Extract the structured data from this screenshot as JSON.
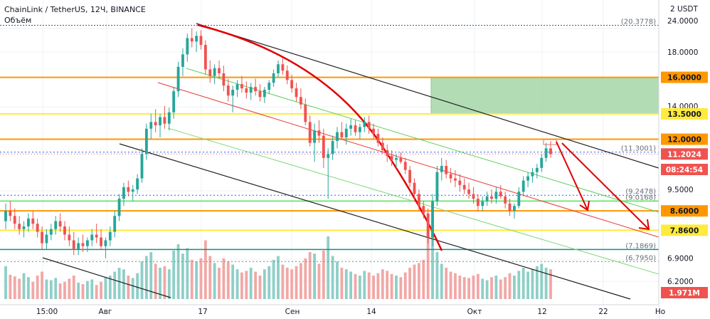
{
  "header": {
    "symbol": "ChainLink / TetherUS, 12Ч, BINANCE",
    "indicator": "Объём"
  },
  "colors": {
    "up": "#26a69a",
    "down": "#ef5350",
    "vol_up": "#8fcfc8",
    "vol_down": "#f1a8a6",
    "orange": "#ff9800",
    "yellow": "#ffeb3b",
    "green_line": "#4caf50",
    "teal_line": "#138f88",
    "red_arc": "#e00000",
    "zone": "#a5d6a7",
    "blue_dotted": "#2962ff",
    "grid": "#eef1f5"
  },
  "chart_data": {
    "type": "candlestick",
    "y_axis_currency": "USDT",
    "y_axis_scale": "log",
    "y_axis_range": [
      5.6,
      24.0
    ],
    "y_ticks": [
      "24.0000",
      "18.0000",
      "14.0000",
      "9.5000",
      "6.9000",
      "6.2000"
    ],
    "x_ticks": [
      "15:00",
      "Авг",
      "17",
      "Сен",
      "14",
      "Окт",
      "12",
      "22",
      "Но"
    ],
    "ohlc": [
      [
        8.2,
        8.9,
        7.9,
        8.6
      ],
      [
        8.6,
        9.0,
        8.2,
        8.4
      ],
      [
        8.4,
        8.7,
        7.9,
        8.1
      ],
      [
        8.1,
        8.4,
        7.7,
        7.9
      ],
      [
        7.9,
        8.2,
        7.6,
        8.0
      ],
      [
        8.0,
        8.5,
        7.8,
        8.3
      ],
      [
        8.3,
        8.6,
        7.9,
        8.1
      ],
      [
        8.1,
        8.3,
        7.6,
        7.8
      ],
      [
        7.8,
        8.0,
        7.2,
        7.4
      ],
      [
        7.4,
        7.9,
        7.2,
        7.7
      ],
      [
        7.7,
        8.1,
        7.5,
        7.9
      ],
      [
        7.9,
        8.4,
        7.7,
        8.2
      ],
      [
        8.2,
        8.5,
        7.8,
        8.0
      ],
      [
        8.0,
        8.2,
        7.5,
        7.7
      ],
      [
        7.7,
        8.0,
        7.3,
        7.5
      ],
      [
        7.5,
        7.8,
        7.0,
        7.2
      ],
      [
        7.2,
        7.6,
        7.0,
        7.4
      ],
      [
        7.4,
        7.7,
        7.1,
        7.3
      ],
      [
        7.3,
        7.6,
        7.1,
        7.5
      ],
      [
        7.5,
        7.9,
        7.3,
        7.7
      ],
      [
        7.7,
        8.1,
        7.4,
        7.6
      ],
      [
        7.6,
        7.9,
        7.2,
        7.3
      ],
      [
        7.3,
        7.6,
        6.9,
        7.5
      ],
      [
        7.5,
        8.0,
        7.3,
        7.8
      ],
      [
        7.8,
        8.6,
        7.6,
        8.4
      ],
      [
        8.4,
        9.3,
        8.2,
        9.1
      ],
      [
        9.1,
        9.8,
        8.8,
        9.6
      ],
      [
        9.6,
        9.9,
        9.2,
        9.4
      ],
      [
        9.4,
        9.7,
        9.0,
        9.5
      ],
      [
        9.5,
        10.2,
        9.3,
        10.0
      ],
      [
        10.0,
        11.5,
        9.8,
        11.2
      ],
      [
        11.2,
        12.9,
        10.9,
        12.6
      ],
      [
        12.6,
        13.5,
        12.0,
        13.0
      ],
      [
        13.0,
        13.8,
        12.4,
        12.8
      ],
      [
        12.8,
        13.5,
        12.1,
        13.3
      ],
      [
        13.3,
        14.0,
        12.6,
        12.9
      ],
      [
        12.9,
        13.9,
        12.5,
        13.6
      ],
      [
        13.6,
        15.3,
        13.2,
        15.0
      ],
      [
        15.0,
        17.2,
        14.6,
        16.8
      ],
      [
        16.8,
        18.3,
        16.1,
        17.8
      ],
      [
        17.8,
        19.6,
        17.2,
        19.2
      ],
      [
        19.2,
        20.1,
        18.4,
        18.9
      ],
      [
        18.9,
        19.8,
        18.0,
        19.4
      ],
      [
        19.4,
        19.9,
        18.2,
        18.6
      ],
      [
        18.6,
        19.0,
        16.2,
        16.6
      ],
      [
        16.6,
        17.3,
        15.6,
        16.1
      ],
      [
        16.1,
        17.0,
        15.5,
        16.7
      ],
      [
        16.7,
        17.3,
        15.9,
        16.3
      ],
      [
        16.3,
        16.9,
        15.0,
        15.4
      ],
      [
        15.4,
        15.9,
        14.3,
        14.7
      ],
      [
        14.7,
        15.4,
        13.6,
        15.1
      ],
      [
        15.1,
        15.8,
        14.6,
        15.5
      ],
      [
        15.5,
        16.1,
        14.9,
        15.2
      ],
      [
        15.2,
        15.7,
        14.5,
        14.9
      ],
      [
        14.9,
        15.6,
        14.4,
        15.3
      ],
      [
        15.3,
        15.9,
        14.7,
        15.0
      ],
      [
        15.0,
        15.5,
        14.3,
        14.6
      ],
      [
        14.6,
        15.3,
        14.2,
        15.1
      ],
      [
        15.1,
        15.8,
        14.8,
        15.6
      ],
      [
        15.6,
        16.6,
        15.3,
        16.3
      ],
      [
        16.3,
        17.3,
        16.0,
        17.0
      ],
      [
        17.0,
        17.5,
        16.2,
        16.5
      ],
      [
        16.5,
        16.9,
        15.5,
        15.8
      ],
      [
        15.8,
        16.2,
        14.9,
        15.2
      ],
      [
        15.2,
        15.6,
        14.3,
        14.6
      ],
      [
        14.6,
        15.2,
        13.8,
        14.1
      ],
      [
        14.1,
        14.5,
        12.8,
        13.0
      ],
      [
        13.0,
        13.4,
        11.6,
        11.8
      ],
      [
        11.8,
        12.9,
        10.8,
        12.5
      ],
      [
        12.5,
        13.1,
        11.8,
        12.2
      ],
      [
        12.2,
        12.6,
        10.5,
        11.0
      ],
      [
        11.0,
        11.5,
        9.1,
        11.2
      ],
      [
        11.2,
        12.2,
        10.9,
        11.9
      ],
      [
        11.9,
        12.7,
        11.5,
        12.4
      ],
      [
        12.4,
        13.0,
        12.0,
        12.1
      ],
      [
        12.1,
        12.9,
        11.7,
        12.6
      ],
      [
        12.6,
        13.2,
        12.2,
        12.8
      ],
      [
        12.8,
        13.1,
        12.2,
        12.4
      ],
      [
        12.4,
        12.9,
        12.0,
        12.7
      ],
      [
        12.7,
        13.3,
        12.4,
        13.0
      ],
      [
        13.0,
        13.4,
        12.3,
        12.6
      ],
      [
        12.6,
        12.9,
        12.0,
        12.3
      ],
      [
        12.3,
        12.6,
        11.6,
        11.8
      ],
      [
        11.8,
        12.1,
        11.2,
        11.4
      ],
      [
        11.4,
        11.7,
        10.8,
        11.1
      ],
      [
        11.1,
        11.4,
        10.6,
        10.9
      ],
      [
        10.9,
        11.2,
        10.5,
        11.0
      ],
      [
        11.0,
        11.3,
        10.7,
        10.8
      ],
      [
        10.8,
        11.0,
        10.2,
        10.4
      ],
      [
        10.4,
        10.6,
        9.6,
        9.8
      ],
      [
        9.8,
        10.0,
        9.0,
        9.3
      ],
      [
        9.3,
        9.5,
        8.6,
        8.8
      ],
      [
        8.8,
        9.0,
        8.3,
        8.5
      ],
      [
        8.5,
        8.7,
        7.4,
        7.6
      ],
      [
        7.6,
        9.3,
        7.3,
        9.0
      ],
      [
        9.0,
        10.6,
        8.8,
        10.3
      ],
      [
        10.3,
        11.0,
        9.9,
        10.6
      ],
      [
        10.6,
        10.9,
        10.0,
        10.2
      ],
      [
        10.2,
        10.5,
        9.8,
        10.0
      ],
      [
        10.0,
        10.4,
        9.6,
        9.9
      ],
      [
        9.9,
        10.2,
        9.4,
        9.7
      ],
      [
        9.7,
        10.0,
        9.3,
        9.5
      ],
      [
        9.5,
        9.8,
        9.1,
        9.3
      ],
      [
        9.3,
        9.6,
        8.9,
        9.1
      ],
      [
        9.1,
        9.3,
        8.6,
        8.8
      ],
      [
        8.8,
        9.2,
        8.6,
        9.0
      ],
      [
        9.0,
        9.4,
        8.8,
        9.2
      ],
      [
        9.2,
        9.5,
        8.9,
        9.1
      ],
      [
        9.1,
        9.6,
        8.9,
        9.4
      ],
      [
        9.4,
        9.7,
        9.1,
        9.2
      ],
      [
        9.2,
        9.4,
        8.7,
        8.9
      ],
      [
        8.9,
        9.1,
        8.4,
        8.6
      ],
      [
        8.6,
        8.9,
        8.3,
        8.8
      ],
      [
        8.8,
        9.6,
        8.7,
        9.4
      ],
      [
        9.4,
        10.1,
        9.2,
        9.9
      ],
      [
        9.9,
        10.3,
        9.6,
        10.1
      ],
      [
        10.1,
        10.5,
        9.8,
        10.3
      ],
      [
        10.3,
        10.7,
        10.0,
        10.5
      ],
      [
        10.5,
        11.2,
        10.3,
        11.0
      ],
      [
        11.0,
        11.8,
        10.8,
        11.5
      ],
      [
        11.5,
        11.9,
        11.0,
        11.2
      ]
    ],
    "volume": [
      0.42,
      0.31,
      0.29,
      0.26,
      0.33,
      0.28,
      0.22,
      0.3,
      0.35,
      0.25,
      0.24,
      0.27,
      0.2,
      0.22,
      0.26,
      0.3,
      0.21,
      0.19,
      0.23,
      0.25,
      0.18,
      0.22,
      0.28,
      0.3,
      0.35,
      0.4,
      0.38,
      0.3,
      0.27,
      0.33,
      0.48,
      0.55,
      0.6,
      0.45,
      0.4,
      0.42,
      0.38,
      0.62,
      0.7,
      0.58,
      0.65,
      0.5,
      0.48,
      0.52,
      0.75,
      0.55,
      0.46,
      0.4,
      0.52,
      0.48,
      0.44,
      0.38,
      0.34,
      0.36,
      0.4,
      0.35,
      0.3,
      0.38,
      0.42,
      0.5,
      0.55,
      0.44,
      0.4,
      0.38,
      0.42,
      0.46,
      0.52,
      0.6,
      0.58,
      0.45,
      0.62,
      0.8,
      0.55,
      0.48,
      0.4,
      0.38,
      0.35,
      0.32,
      0.3,
      0.36,
      0.34,
      0.3,
      0.33,
      0.38,
      0.36,
      0.32,
      0.3,
      0.28,
      0.34,
      0.4,
      0.44,
      0.46,
      0.5,
      0.85,
      0.9,
      0.6,
      0.45,
      0.4,
      0.35,
      0.33,
      0.3,
      0.28,
      0.27,
      0.3,
      0.32,
      0.26,
      0.24,
      0.28,
      0.3,
      0.25,
      0.28,
      0.33,
      0.3,
      0.36,
      0.4,
      0.35,
      0.38,
      0.42,
      0.45,
      0.4,
      0.38
    ],
    "horizontal_levels": [
      {
        "price": 20.3778,
        "label": "(20.3778)",
        "style": "dotted-gray"
      },
      {
        "price": 16.0,
        "label": "16.0000",
        "color": "orange"
      },
      {
        "price": 13.5,
        "label": "13.5000",
        "color": "yellow"
      },
      {
        "price": 12.0,
        "label": "12.0000",
        "color": "orange"
      },
      {
        "price": 11.3001,
        "label": "(11.3001)",
        "style": "dotted-blue"
      },
      {
        "price": 11.2024,
        "label": "11.2024",
        "style": "last-price"
      },
      {
        "price": 9.2478,
        "label": "(9.2478)",
        "style": "dotted-blue"
      },
      {
        "price": 9.0,
        "label": "(9.0168)",
        "color": "green"
      },
      {
        "price": 8.6,
        "label": "8.6000",
        "color": "orange"
      },
      {
        "price": 7.86,
        "label": "7.8600",
        "color": "yellow"
      },
      {
        "price": 7.1869,
        "label": "(7.1869)",
        "color": "teal"
      },
      {
        "price": 6.795,
        "label": "(6.7950)",
        "style": "dotted-green"
      }
    ],
    "countdown": "08:24:54",
    "volume_label": "1.971M",
    "zone": {
      "x": [
        606,
        926
      ],
      "price_top": 16.0,
      "price_bottom": 13.5
    }
  }
}
